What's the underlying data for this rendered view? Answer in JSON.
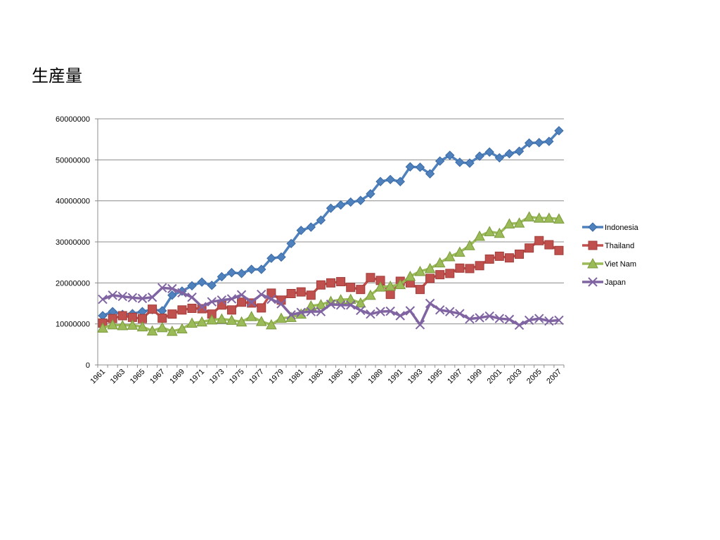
{
  "slide": {
    "title": "生産量"
  },
  "chart_data": {
    "type": "line",
    "title": "",
    "xlabel": "",
    "ylabel": "",
    "ylim": [
      0,
      60000000
    ],
    "yticks": [
      0,
      10000000,
      20000000,
      30000000,
      40000000,
      50000000,
      60000000
    ],
    "ytick_labels": [
      "0",
      "10000000",
      "20000000",
      "30000000",
      "40000000",
      "50000000",
      "60000000"
    ],
    "x": [
      1961,
      1962,
      1963,
      1964,
      1965,
      1966,
      1967,
      1968,
      1969,
      1970,
      1971,
      1972,
      1973,
      1974,
      1975,
      1976,
      1977,
      1978,
      1979,
      1980,
      1981,
      1982,
      1983,
      1984,
      1985,
      1986,
      1987,
      1988,
      1989,
      1990,
      1991,
      1992,
      1993,
      1994,
      1995,
      1996,
      1997,
      1998,
      1999,
      2000,
      2001,
      2002,
      2003,
      2004,
      2005,
      2006,
      2007
    ],
    "xtick_labels": [
      "1961",
      "1963",
      "1965",
      "1967",
      "1969",
      "1971",
      "1973",
      "1975",
      "1977",
      "1979",
      "1981",
      "1983",
      "1985",
      "1987",
      "1989",
      "1991",
      "1993",
      "1995",
      "1997",
      "1999",
      "2001",
      "2003",
      "2005",
      "2007"
    ],
    "grid": true,
    "legend": "right",
    "series": [
      {
        "name": "Indonesia",
        "color": "#4f81bd",
        "marker": "diamond",
        "values": [
          12000000,
          13000000,
          12300000,
          12500000,
          13000000,
          13500000,
          13200000,
          17000000,
          18000000,
          19300000,
          20200000,
          19400000,
          21500000,
          22500000,
          22300000,
          23300000,
          23300000,
          26000000,
          26300000,
          29600000,
          32800000,
          33600000,
          35300000,
          38200000,
          39000000,
          39700000,
          40100000,
          41700000,
          44700000,
          45200000,
          44700000,
          48300000,
          48200000,
          46600000,
          49700000,
          51100000,
          49400000,
          49200000,
          50900000,
          51900000,
          50500000,
          51500000,
          52100000,
          54100000,
          54200000,
          54500000,
          57100000
        ]
      },
      {
        "name": "Thailand",
        "color": "#c0504d",
        "marker": "square",
        "values": [
          10200000,
          11300000,
          12000000,
          11600000,
          11300000,
          13600000,
          11400000,
          12400000,
          13400000,
          13800000,
          13700000,
          12400000,
          14600000,
          13400000,
          15300000,
          15100000,
          13900000,
          17500000,
          15800000,
          17400000,
          17800000,
          17000000,
          19500000,
          20000000,
          20300000,
          18900000,
          18400000,
          21300000,
          20600000,
          17200000,
          20400000,
          20000000,
          18400000,
          21100000,
          22000000,
          22300000,
          23600000,
          23500000,
          24200000,
          25800000,
          26500000,
          26100000,
          27000000,
          28500000,
          30300000,
          29300000,
          27900000
        ]
      },
      {
        "name": "Viet Nam",
        "color": "#9bbb59",
        "marker": "triangle",
        "values": [
          9000000,
          9800000,
          9600000,
          9700000,
          9300000,
          8300000,
          9100000,
          8200000,
          8800000,
          10200000,
          10500000,
          11000000,
          11200000,
          10900000,
          10500000,
          11800000,
          10600000,
          9800000,
          11400000,
          11600000,
          12400000,
          14400000,
          14700000,
          15500000,
          15900000,
          16000000,
          15100000,
          17000000,
          19000000,
          19200000,
          19600000,
          21600000,
          22800000,
          23500000,
          24900000,
          26400000,
          27500000,
          29100000,
          31400000,
          32500000,
          32100000,
          34400000,
          34600000,
          36100000,
          35800000,
          35800000,
          35600000
        ]
      },
      {
        "name": "Japan",
        "color": "#8064a2",
        "marker": "x",
        "values": [
          16000000,
          17000000,
          16700000,
          16400000,
          16200000,
          16500000,
          18800000,
          18600000,
          17600000,
          16500000,
          14200000,
          15400000,
          15800000,
          16100000,
          17100000,
          15300000,
          17200000,
          16000000,
          14900000,
          12200000,
          12800000,
          13000000,
          13000000,
          14800000,
          14600000,
          14600000,
          13300000,
          12400000,
          13000000,
          13100000,
          12000000,
          13200000,
          9800000,
          15000000,
          13400000,
          13000000,
          12500000,
          11200000,
          11500000,
          11900000,
          11300000,
          11100000,
          9700000,
          10900000,
          11300000,
          10700000,
          10900000
        ]
      }
    ]
  }
}
